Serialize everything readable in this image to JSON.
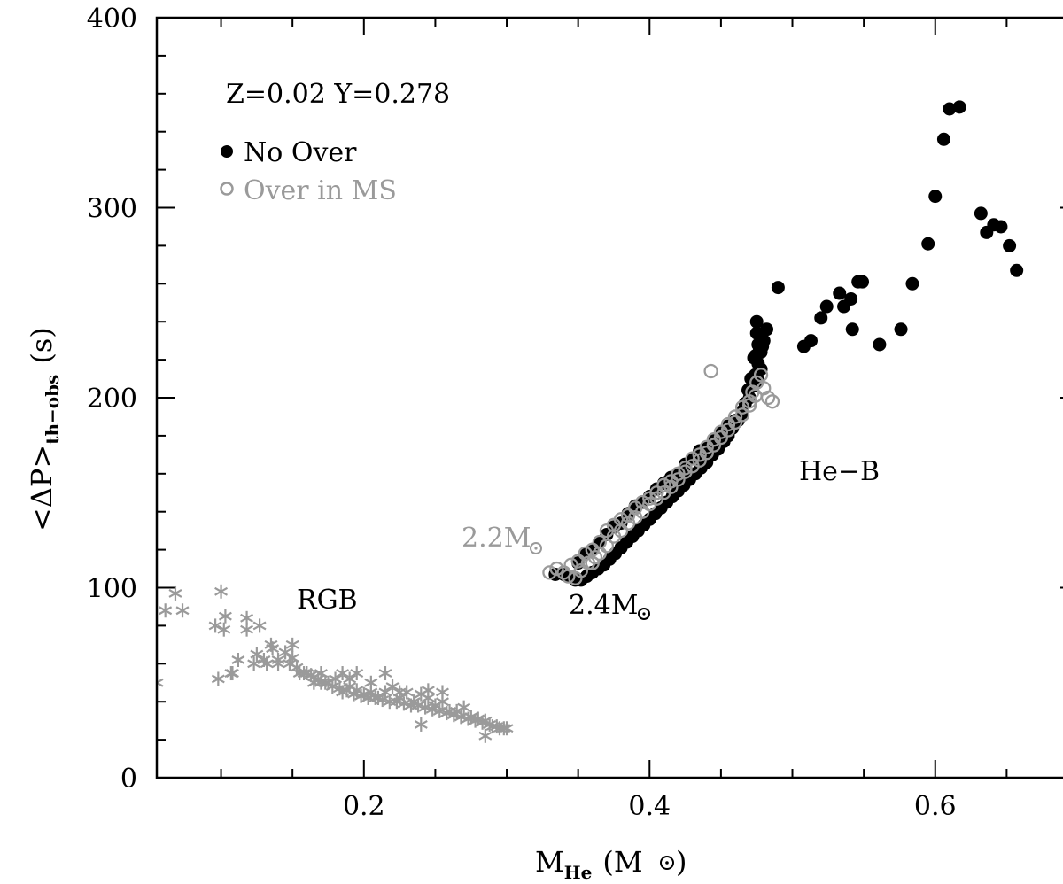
{
  "colors": {
    "black": "#000000",
    "gray": "#9a9a9a"
  },
  "chart_data": {
    "type": "scatter",
    "xlabel": {
      "main": "M",
      "sub": "He",
      "unit": "(M",
      "unit_close": ")"
    },
    "ylabel": {
      "main": "<ΔP>",
      "sub": "th−obs",
      "unit": "(s)"
    },
    "xlim": [
      0.055,
      0.7
    ],
    "ylim": [
      0,
      400
    ],
    "x_ticks": [
      0.2,
      0.4,
      0.6
    ],
    "x_tick_labels": [
      "0.2",
      "0.4",
      "0.6"
    ],
    "y_ticks": [
      0,
      100,
      200,
      300,
      400
    ],
    "y_tick_labels": [
      "0",
      "100",
      "200",
      "300",
      "400"
    ],
    "x_minor_step": 0.05,
    "y_minor_step": 20,
    "grid": false,
    "legend_position": "top-left",
    "legend": {
      "title": "Z=0.02 Y=0.278",
      "entries": [
        {
          "label": "No Over",
          "marker": "filled-circle",
          "color": "#000000"
        },
        {
          "label": "Over in MS",
          "marker": "open-circle",
          "color": "#9a9a9a"
        }
      ]
    },
    "annotations": [
      {
        "text": "RGB",
        "x": 0.17,
        "y": 92,
        "color": "#000000"
      },
      {
        "text": "He−B",
        "x": 0.51,
        "y": 155,
        "color": "#000000"
      },
      {
        "text": "2.2M",
        "x": 0.31,
        "y": 124,
        "color": "#9a9a9a",
        "sun": true
      },
      {
        "text": "2.4M",
        "x": 0.4,
        "y": 88,
        "color": "#000000",
        "sun": true
      }
    ],
    "series": [
      {
        "name": "No Over",
        "marker": "filled-circle",
        "color": "#000000",
        "x": [
          0.334,
          0.34,
          0.345,
          0.35,
          0.355,
          0.36,
          0.365,
          0.37,
          0.375,
          0.38,
          0.385,
          0.39,
          0.395,
          0.4,
          0.405,
          0.41,
          0.415,
          0.42,
          0.425,
          0.43,
          0.435,
          0.44,
          0.445,
          0.45,
          0.455,
          0.46,
          0.465,
          0.47,
          0.472,
          0.474,
          0.476,
          0.478,
          0.48,
          0.482,
          0.475,
          0.477,
          0.479,
          0.473,
          0.471,
          0.469,
          0.467,
          0.465,
          0.462,
          0.458,
          0.455,
          0.452,
          0.448,
          0.444,
          0.44,
          0.436,
          0.432,
          0.428,
          0.424,
          0.42,
          0.416,
          0.412,
          0.408,
          0.404,
          0.4,
          0.396,
          0.392,
          0.388,
          0.384,
          0.38,
          0.376,
          0.372,
          0.368,
          0.364,
          0.36,
          0.356,
          0.352,
          0.348,
          0.344,
          0.413,
          0.425,
          0.438,
          0.452,
          0.476,
          0.475,
          0.474,
          0.477,
          0.478,
          0.476,
          0.49,
          0.508,
          0.513,
          0.52,
          0.524,
          0.533,
          0.536,
          0.541,
          0.542,
          0.546,
          0.549,
          0.561,
          0.576,
          0.584,
          0.595,
          0.6,
          0.606,
          0.61,
          0.617,
          0.632,
          0.636,
          0.641,
          0.646,
          0.652,
          0.657
        ],
        "y": [
          107,
          107,
          106,
          113,
          118,
          120,
          124,
          128,
          132,
          134,
          139,
          143,
          145,
          148,
          152,
          155,
          158,
          160,
          165,
          168,
          172,
          174,
          178,
          182,
          185,
          188,
          193,
          200,
          206,
          212,
          218,
          224,
          230,
          236,
          240,
          233,
          227,
          221,
          210,
          204,
          197,
          192,
          188,
          184,
          180,
          177,
          173,
          170,
          166,
          163,
          160,
          157,
          154,
          151,
          148,
          145,
          142,
          139,
          136,
          133,
          130,
          127,
          124,
          121,
          118,
          115,
          112,
          110,
          108,
          106,
          104,
          104,
          106,
          156,
          160,
          168,
          177,
          228,
          234,
          222,
          226,
          215,
          209,
          258,
          227,
          230,
          242,
          248,
          255,
          248,
          252,
          236,
          261,
          261,
          228,
          236,
          260,
          281,
          306,
          336,
          352,
          353,
          297,
          287,
          291,
          290,
          280,
          267
        ]
      },
      {
        "name": "Over in MS",
        "marker": "open-circle",
        "color": "#9a9a9a",
        "x": [
          0.33,
          0.335,
          0.34,
          0.345,
          0.35,
          0.355,
          0.36,
          0.365,
          0.37,
          0.375,
          0.38,
          0.385,
          0.39,
          0.395,
          0.4,
          0.405,
          0.41,
          0.415,
          0.42,
          0.425,
          0.43,
          0.435,
          0.44,
          0.445,
          0.45,
          0.455,
          0.46,
          0.465,
          0.47,
          0.472,
          0.475,
          0.478,
          0.48,
          0.483,
          0.486,
          0.443,
          0.36,
          0.365,
          0.37,
          0.375,
          0.38,
          0.385,
          0.39,
          0.395,
          0.4,
          0.405,
          0.41,
          0.415,
          0.42,
          0.425,
          0.43,
          0.435,
          0.44,
          0.445,
          0.45,
          0.455,
          0.46,
          0.465,
          0.47,
          0.474,
          0.343,
          0.348,
          0.352,
          0.357,
          0.362
        ],
        "y": [
          108,
          110,
          108,
          112,
          114,
          118,
          120,
          124,
          130,
          133,
          136,
          138,
          142,
          145,
          147,
          150,
          154,
          156,
          160,
          163,
          168,
          170,
          174,
          178,
          182,
          186,
          190,
          195,
          198,
          203,
          208,
          212,
          205,
          200,
          198,
          214,
          113,
          118,
          122,
          127,
          130,
          134,
          137,
          140,
          144,
          147,
          150,
          153,
          157,
          161,
          164,
          167,
          171,
          175,
          179,
          183,
          187,
          191,
          196,
          201,
          106,
          105,
          109,
          113,
          116
        ]
      },
      {
        "name": "RGB",
        "marker": "star",
        "color": "#9a9a9a",
        "x": [
          0.055,
          0.061,
          0.068,
          0.073,
          0.096,
          0.1,
          0.103,
          0.108,
          0.112,
          0.118,
          0.123,
          0.127,
          0.132,
          0.136,
          0.14,
          0.145,
          0.15,
          0.155,
          0.16,
          0.165,
          0.17,
          0.175,
          0.18,
          0.185,
          0.19,
          0.195,
          0.2,
          0.205,
          0.21,
          0.215,
          0.22,
          0.225,
          0.23,
          0.235,
          0.24,
          0.245,
          0.25,
          0.255,
          0.26,
          0.265,
          0.27,
          0.275,
          0.28,
          0.285,
          0.29,
          0.295,
          0.3,
          0.098,
          0.102,
          0.107,
          0.118,
          0.125,
          0.13,
          0.135,
          0.14,
          0.148,
          0.153,
          0.158,
          0.163,
          0.168,
          0.173,
          0.178,
          0.183,
          0.188,
          0.193,
          0.198,
          0.203,
          0.208,
          0.213,
          0.218,
          0.223,
          0.228,
          0.233,
          0.238,
          0.243,
          0.248,
          0.253,
          0.258,
          0.263,
          0.268,
          0.273,
          0.278,
          0.283,
          0.288,
          0.293,
          0.298,
          0.15,
          0.165,
          0.185,
          0.205,
          0.225,
          0.245,
          0.265,
          0.285,
          0.195,
          0.215,
          0.235,
          0.255,
          0.275,
          0.24,
          0.21,
          0.19,
          0.17
        ],
        "y": [
          50,
          88,
          97,
          88,
          80,
          98,
          85,
          55,
          62,
          84,
          60,
          80,
          60,
          68,
          60,
          66,
          63,
          55,
          55,
          53,
          55,
          50,
          52,
          45,
          48,
          46,
          44,
          45,
          42,
          45,
          48,
          42,
          45,
          40,
          44,
          42,
          38,
          40,
          35,
          35,
          37,
          32,
          31,
          30,
          27,
          26,
          26,
          52,
          78,
          55,
          78,
          65,
          62,
          70,
          62,
          60,
          58,
          55,
          54,
          52,
          50,
          48,
          47,
          46,
          44,
          43,
          42,
          42,
          41,
          40,
          40,
          39,
          38,
          38,
          37,
          36,
          35,
          34,
          33,
          32,
          31,
          30,
          29,
          28,
          27,
          26,
          70,
          50,
          55,
          50,
          45,
          46,
          35,
          22,
          55,
          55,
          40,
          45,
          32,
          28,
          42,
          52,
          50
        ]
      }
    ]
  }
}
